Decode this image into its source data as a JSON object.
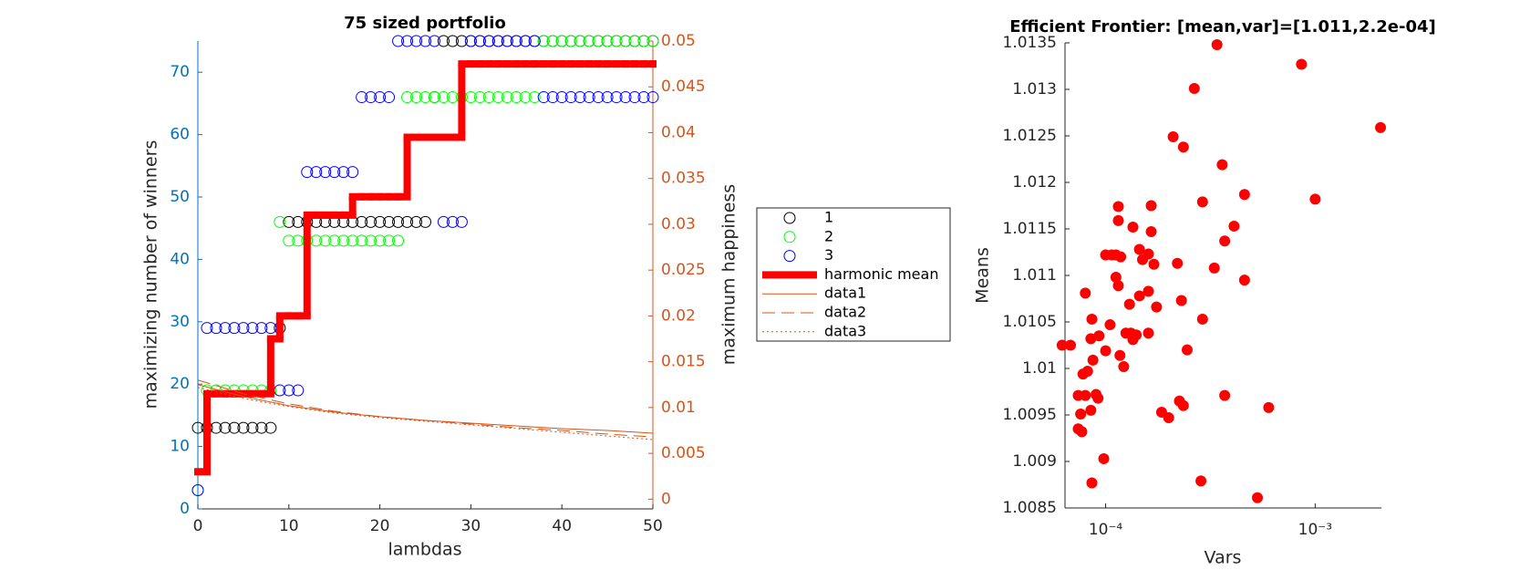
{
  "chart_data": [
    {
      "type": "scatter",
      "title": "75 sized portfolio",
      "xlabel": "lambdas",
      "ylabel": "maximizing number of winners",
      "y2label": "maximum happiness",
      "axis_color": "#0072bd",
      "y2_color": "#d95319",
      "legend": "east",
      "xlim": [
        0,
        50
      ],
      "xticks": [
        0,
        10,
        20,
        30,
        40,
        50
      ],
      "ylim": [
        0,
        75
      ],
      "yticks": [
        0,
        10,
        20,
        30,
        40,
        50,
        60,
        70
      ],
      "y2lim": [
        -0.00106,
        0.05
      ],
      "y2ticks": [
        0,
        0.005,
        0.01,
        0.015,
        0.02,
        0.025,
        0.03,
        0.035,
        0.04,
        0.045,
        0.05
      ],
      "x": [
        0,
        1,
        2,
        3,
        4,
        5,
        6,
        7,
        8,
        9,
        10,
        11,
        12,
        13,
        14,
        15,
        16,
        17,
        18,
        19,
        20,
        21,
        22,
        23,
        24,
        25,
        26,
        27,
        28,
        29,
        30,
        31,
        32,
        33,
        34,
        35,
        36,
        37,
        38,
        39,
        40,
        41,
        42,
        43,
        44,
        45,
        46,
        47,
        48,
        49,
        50
      ],
      "series": [
        {
          "name": "1",
          "color": "#000000",
          "style": "marker",
          "values": [
            13,
            13,
            13,
            13,
            13,
            13,
            13,
            13,
            13,
            29,
            46,
            46,
            46,
            46,
            46,
            46,
            46,
            46,
            46,
            46,
            46,
            46,
            46,
            46,
            46,
            46,
            66,
            75,
            75,
            75,
            75,
            75,
            75,
            75,
            75,
            75,
            75,
            75,
            75,
            75,
            75,
            75,
            75,
            75,
            75,
            75,
            75,
            75,
            75,
            75,
            75
          ]
        },
        {
          "name": "2",
          "color": "#00ff00",
          "style": "marker",
          "values": [
            3,
            19,
            19,
            19,
            19,
            19,
            19,
            19,
            19,
            46,
            43,
            43,
            43,
            43,
            43,
            43,
            43,
            43,
            43,
            43,
            43,
            43,
            43,
            66,
            66,
            66,
            66,
            66,
            66,
            66,
            66,
            66,
            66,
            66,
            66,
            66,
            66,
            66,
            75,
            75,
            75,
            75,
            75,
            75,
            75,
            75,
            75,
            75,
            75,
            75,
            75
          ]
        },
        {
          "name": "3",
          "color": "#0000ff",
          "style": "marker",
          "values": [
            3,
            29,
            29,
            29,
            29,
            29,
            29,
            29,
            29,
            19,
            19,
            19,
            54,
            54,
            54,
            54,
            54,
            54,
            66,
            66,
            66,
            66,
            75,
            75,
            75,
            75,
            75,
            46,
            46,
            46,
            75,
            75,
            75,
            75,
            75,
            75,
            75,
            75,
            66,
            66,
            66,
            66,
            66,
            66,
            66,
            66,
            66,
            66,
            66,
            66,
            66
          ]
        },
        {
          "name": "harmonic mean",
          "color": "#ff0000",
          "style": "step",
          "axis": "y2",
          "values": [
            0.003,
            0.0115,
            0.0115,
            0.0115,
            0.0115,
            0.0115,
            0.0115,
            0.0115,
            0.0175,
            0.02,
            0.02,
            0.02,
            0.031,
            0.031,
            0.031,
            0.031,
            0.031,
            0.033,
            0.033,
            0.033,
            0.033,
            0.033,
            0.033,
            0.0395,
            0.0395,
            0.0395,
            0.0395,
            0.0395,
            0.0395,
            0.0475,
            0.0475,
            0.0475,
            0.0475,
            0.0475,
            0.0475,
            0.0475,
            0.0475,
            0.0475,
            0.0475,
            0.0475,
            0.0475,
            0.0475,
            0.0475,
            0.0475,
            0.0475,
            0.0475,
            0.0475,
            0.0475,
            0.0475,
            0.0475,
            0.0475
          ]
        },
        {
          "name": "data1",
          "color": "#d95319",
          "style": "line",
          "axis": "y2",
          "x": [
            0,
            5,
            10,
            15,
            20,
            25,
            30,
            35,
            40,
            45,
            50
          ],
          "values": [
            0.0125,
            0.0112,
            0.0102,
            0.0095,
            0.009,
            0.0086,
            0.0083,
            0.008,
            0.0077,
            0.0075,
            0.0072
          ]
        },
        {
          "name": "data2",
          "color": "#d95319",
          "style": "line",
          "dash": "dashed",
          "axis": "y2",
          "x": [
            0,
            5,
            10,
            15,
            20,
            25,
            30,
            35,
            40,
            45,
            50
          ],
          "values": [
            0.013,
            0.0115,
            0.0104,
            0.0096,
            0.009,
            0.0086,
            0.0082,
            0.0078,
            0.0075,
            0.0071,
            0.0068
          ]
        },
        {
          "name": "data3",
          "color": "#d95319",
          "style": "line",
          "dash": "dotted",
          "axis": "y2",
          "x": [
            0,
            5,
            10,
            15,
            20,
            25,
            30,
            35,
            40,
            45,
            50
          ],
          "values": [
            0.0122,
            0.011,
            0.0101,
            0.0094,
            0.0089,
            0.0085,
            0.0081,
            0.0077,
            0.0073,
            0.0069,
            0.0065
          ]
        }
      ]
    },
    {
      "type": "scatter",
      "title": "Efficient Frontier: [mean,var]=[1.011,2.2e-04]",
      "xlabel": "Vars",
      "ylabel": "Means",
      "xscale": "log",
      "color": "#ff0000",
      "xlim": [
        6.4e-05,
        0.00207
      ],
      "xticks": [
        {
          "value": 0.0001,
          "label": "10⁻⁴"
        },
        {
          "value": 0.001,
          "label": "10⁻³"
        }
      ],
      "ylim": [
        1.0085,
        1.0135
      ],
      "yticks": [
        1.0085,
        1.009,
        1.0095,
        1.01,
        1.0105,
        1.011,
        1.0115,
        1.012,
        1.0125,
        1.013,
        1.0135
      ],
      "x": [
        0.00034,
        0.00086,
        0.00205,
        0.001,
        0.000265,
        0.000235,
        0.00021,
        0.00036,
        0.00046,
        0.00029,
        0.000165,
        0.000115,
        0.000115,
        0.000135,
        0.000165,
        0.00041,
        0.00037,
        0.000145,
        0.0001,
        0.000107,
        0.000112,
        0.000118,
        0.00016,
        0.00015,
        0.00022,
        0.00033,
        0.00017,
        0.000112,
        0.00046,
        0.000115,
        0.00016,
        0.000145,
        8e-05,
        0.00023,
        0.00013,
        0.000175,
        0.00029,
        8.6e-05,
        0.000105,
        0.000125,
        0.000132,
        0.00014,
        0.00016,
        0.000135,
        9.3e-05,
        8.5e-05,
        6.2e-05,
        6.8e-05,
        0.000245,
        0.0001,
        0.000117,
        8.7e-05,
        0.000122,
        8.2e-05,
        7.8e-05,
        7.4e-05,
        8e-05,
        9e-05,
        9.2e-05,
        0.00037,
        0.000225,
        0.000235,
        0.0006,
        8.5e-05,
        7.6e-05,
        0.000185,
        0.0002,
        7.4e-05,
        7.7e-05,
        9.8e-05,
        0.000285,
        8.6e-05,
        0.00053
      ],
      "values": [
        1.01348,
        1.01327,
        1.01259,
        1.01182,
        1.01301,
        1.01238,
        1.01249,
        1.01219,
        1.01187,
        1.01179,
        1.01175,
        1.01174,
        1.01159,
        1.01152,
        1.01147,
        1.01153,
        1.01137,
        1.01128,
        1.01122,
        1.01122,
        1.01122,
        1.0112,
        1.01123,
        1.01117,
        1.01113,
        1.01108,
        1.01112,
        1.01098,
        1.01095,
        1.01089,
        1.01083,
        1.01078,
        1.01081,
        1.01073,
        1.01069,
        1.01066,
        1.01053,
        1.01053,
        1.01047,
        1.01038,
        1.01038,
        1.01036,
        1.01038,
        1.01031,
        1.01035,
        1.01032,
        1.01025,
        1.01025,
        1.0102,
        1.01019,
        1.01014,
        1.01009,
        1.01002,
        1.00997,
        1.00994,
        1.00971,
        1.00971,
        1.00972,
        1.00968,
        1.00971,
        1.00965,
        1.0096,
        1.00958,
        1.00955,
        1.00951,
        1.00953,
        1.00947,
        1.00935,
        1.00932,
        1.00903,
        1.00879,
        1.00877,
        1.00861
      ]
    }
  ]
}
